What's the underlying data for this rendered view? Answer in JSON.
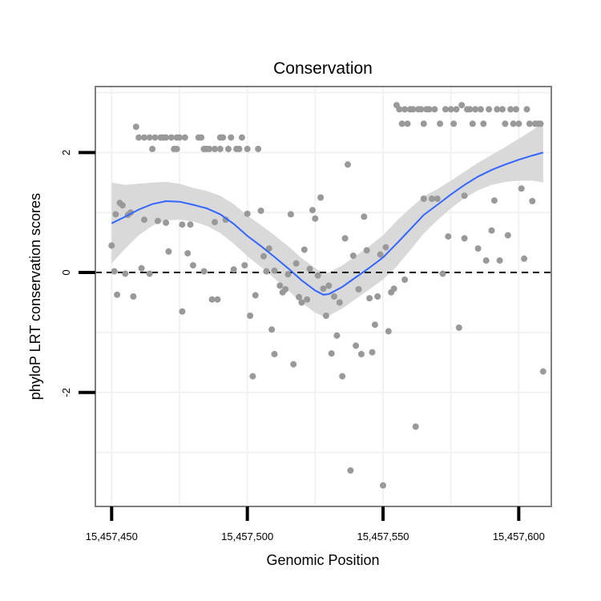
{
  "chart_data": {
    "type": "scatter",
    "title": "Conservation",
    "xlabel": "Genomic Position",
    "ylabel": "phyloP LRT conservation scores",
    "xlim": [
      15457444,
      15457612
    ],
    "ylim": [
      -3.9,
      3.1
    ],
    "x_ticks": [
      {
        "value": 15457450,
        "label": "15,457,450"
      },
      {
        "value": 15457500,
        "label": "15,457,500"
      },
      {
        "value": 15457550,
        "label": "15,457,550"
      },
      {
        "value": 15457600,
        "label": "15,457,600"
      }
    ],
    "y_ticks": [
      {
        "value": -2,
        "label": "-2"
      },
      {
        "value": 0,
        "label": "0"
      },
      {
        "value": 2,
        "label": "2"
      }
    ],
    "grid": true,
    "reference_line": {
      "y": 0,
      "style": "dashed"
    },
    "colors": {
      "points": "#999999",
      "smooth": "#3366ff",
      "ribbon": "#d9d9d9",
      "panel_border": "#7f7f7f",
      "grid": "#f2f2f2"
    },
    "points": [
      [
        15457450,
        0.45
      ],
      [
        15457451,
        0.02
      ],
      [
        15457451.5,
        0.97
      ],
      [
        15457452,
        -0.37
      ],
      [
        15457453,
        1.16
      ],
      [
        15457454,
        1.12
      ],
      [
        15457455,
        -0.02
      ],
      [
        15457456,
        0.96
      ],
      [
        15457457,
        1.0
      ],
      [
        15457458,
        -0.4
      ],
      [
        15457459,
        2.43
      ],
      [
        15457460,
        2.25
      ],
      [
        15457461,
        0.07
      ],
      [
        15457462,
        0.88
      ],
      [
        15457462,
        2.25
      ],
      [
        15457464,
        2.25
      ],
      [
        15457464,
        -0.02
      ],
      [
        15457465,
        2.06
      ],
      [
        15457466,
        2.25
      ],
      [
        15457467,
        0.86
      ],
      [
        15457468,
        2.25
      ],
      [
        15457469,
        2.25
      ],
      [
        15457470,
        0.83
      ],
      [
        15457470,
        2.25
      ],
      [
        15457471,
        0.35
      ],
      [
        15457472,
        2.25
      ],
      [
        15457473,
        2.06
      ],
      [
        15457474,
        2.06
      ],
      [
        15457474,
        2.25
      ],
      [
        15457475,
        2.25
      ],
      [
        15457476,
        -0.65
      ],
      [
        15457476,
        0.8
      ],
      [
        15457477,
        2.25
      ],
      [
        15457478,
        0.32
      ],
      [
        15457479,
        0.8
      ],
      [
        15457480,
        0.12
      ],
      [
        15457482,
        2.25
      ],
      [
        15457483,
        2.25
      ],
      [
        15457484,
        2.06
      ],
      [
        15457484,
        0.02
      ],
      [
        15457485,
        2.06
      ],
      [
        15457486,
        2.06
      ],
      [
        15457487,
        -0.45
      ],
      [
        15457488,
        0.84
      ],
      [
        15457488,
        2.06
      ],
      [
        15457489,
        -0.45
      ],
      [
        15457490,
        2.25
      ],
      [
        15457490,
        2.06
      ],
      [
        15457491,
        2.25
      ],
      [
        15457492,
        0.88
      ],
      [
        15457493,
        2.06
      ],
      [
        15457494,
        2.25
      ],
      [
        15457495,
        0.05
      ],
      [
        15457496,
        2.06
      ],
      [
        15457497,
        2.06
      ],
      [
        15457498,
        2.25
      ],
      [
        15457499,
        0.12
      ],
      [
        15457500,
        0.98
      ],
      [
        15457500,
        2.06
      ],
      [
        15457501,
        -0.72
      ],
      [
        15457502,
        -1.73
      ],
      [
        15457503,
        -0.38
      ],
      [
        15457504,
        2.06
      ],
      [
        15457505,
        1.03
      ],
      [
        15457506,
        0.27
      ],
      [
        15457507,
        0.02
      ],
      [
        15457508,
        0.4
      ],
      [
        15457509,
        -0.95
      ],
      [
        15457510,
        -1.36
      ],
      [
        15457510,
        0.03
      ],
      [
        15457512,
        -0.22
      ],
      [
        15457513,
        -0.33
      ],
      [
        15457514,
        -0.28
      ],
      [
        15457515,
        -0.03
      ],
      [
        15457516,
        0.97
      ],
      [
        15457517,
        -1.53
      ],
      [
        15457518,
        0.15
      ],
      [
        15457519,
        -0.41
      ],
      [
        15457520,
        -0.5
      ],
      [
        15457521,
        0.38
      ],
      [
        15457522,
        -0.45
      ],
      [
        15457523,
        0.06
      ],
      [
        15457524,
        1.04
      ],
      [
        15457525,
        0.9
      ],
      [
        15457526,
        -0.05
      ],
      [
        15457527,
        1.25
      ],
      [
        15457528,
        -0.27
      ],
      [
        15457529,
        -0.72
      ],
      [
        15457530,
        -0.22
      ],
      [
        15457531,
        -1.35
      ],
      [
        15457532,
        -0.4
      ],
      [
        15457533,
        -1.05
      ],
      [
        15457534,
        -0.5
      ],
      [
        15457535,
        -1.73
      ],
      [
        15457536,
        0.57
      ],
      [
        15457537,
        1.8
      ],
      [
        15457538,
        -3.3
      ],
      [
        15457539,
        0.28
      ],
      [
        15457540,
        -1.22
      ],
      [
        15457541,
        -0.28
      ],
      [
        15457542,
        -1.36
      ],
      [
        15457543,
        0.93
      ],
      [
        15457544,
        0.37
      ],
      [
        15457545,
        -0.43
      ],
      [
        15457546,
        -1.33
      ],
      [
        15457547,
        -0.87
      ],
      [
        15457548,
        -0.4
      ],
      [
        15457549,
        0.3
      ],
      [
        15457550,
        -3.55
      ],
      [
        15457551,
        0.42
      ],
      [
        15457552,
        -0.98
      ],
      [
        15457553,
        -0.33
      ],
      [
        15457554,
        -0.27
      ],
      [
        15457555,
        2.79
      ],
      [
        15457556,
        2.72
      ],
      [
        15457557,
        2.48
      ],
      [
        15457558,
        -0.12
      ],
      [
        15457558,
        2.72
      ],
      [
        15457559,
        2.48
      ],
      [
        15457560,
        2.72
      ],
      [
        15457561,
        2.72
      ],
      [
        15457562,
        -2.57
      ],
      [
        15457563,
        2.72
      ],
      [
        15457564,
        2.72
      ],
      [
        15457565,
        1.23
      ],
      [
        15457565,
        2.48
      ],
      [
        15457566,
        2.72
      ],
      [
        15457567,
        2.72
      ],
      [
        15457568,
        1.23
      ],
      [
        15457569,
        2.72
      ],
      [
        15457570,
        1.23
      ],
      [
        15457571,
        2.48
      ],
      [
        15457572,
        -0.02
      ],
      [
        15457573,
        2.72
      ],
      [
        15457574,
        0.6
      ],
      [
        15457575,
        2.72
      ],
      [
        15457576,
        2.48
      ],
      [
        15457577,
        2.72
      ],
      [
        15457578,
        -0.92
      ],
      [
        15457579,
        2.79
      ],
      [
        15457580,
        1.28
      ],
      [
        15457580,
        0.57
      ],
      [
        15457581,
        2.72
      ],
      [
        15457582,
        2.72
      ],
      [
        15457583,
        2.48
      ],
      [
        15457584,
        2.72
      ],
      [
        15457585,
        0.4
      ],
      [
        15457586,
        2.72
      ],
      [
        15457587,
        2.48
      ],
      [
        15457588,
        0.2
      ],
      [
        15457589,
        2.72
      ],
      [
        15457590,
        0.7
      ],
      [
        15457591,
        1.2
      ],
      [
        15457592,
        2.72
      ],
      [
        15457593,
        0.2
      ],
      [
        15457594,
        2.72
      ],
      [
        15457595,
        2.48
      ],
      [
        15457596,
        0.62
      ],
      [
        15457597,
        2.72
      ],
      [
        15457598,
        2.48
      ],
      [
        15457599,
        2.72
      ],
      [
        15457600,
        2.48
      ],
      [
        15457601,
        1.4
      ],
      [
        15457602,
        0.23
      ],
      [
        15457603,
        2.72
      ],
      [
        15457604,
        2.48
      ],
      [
        15457605,
        1.19
      ],
      [
        15457606,
        2.48
      ],
      [
        15457607,
        2.48
      ],
      [
        15457608,
        2.48
      ],
      [
        15457609,
        -1.65
      ]
    ],
    "smooth_line": {
      "x": [
        15457450,
        15457455,
        15457460,
        15457465,
        15457470,
        15457475,
        15457480,
        15457485,
        15457490,
        15457495,
        15457500,
        15457505,
        15457510,
        15457515,
        15457520,
        15457525,
        15457528,
        15457530,
        15457535,
        15457540,
        15457545,
        15457550,
        15457555,
        15457560,
        15457565,
        15457570,
        15457575,
        15457580,
        15457585,
        15457590,
        15457595,
        15457600,
        15457605,
        15457609
      ],
      "y": [
        0.82,
        0.93,
        1.05,
        1.14,
        1.19,
        1.18,
        1.13,
        1.07,
        0.97,
        0.81,
        0.61,
        0.44,
        0.26,
        0.07,
        -0.13,
        -0.3,
        -0.37,
        -0.36,
        -0.24,
        -0.08,
        0.08,
        0.25,
        0.48,
        0.72,
        0.96,
        1.13,
        1.3,
        1.46,
        1.6,
        1.71,
        1.8,
        1.88,
        1.95,
        2.0
      ]
    },
    "confidence_band": {
      "x": [
        15457450,
        15457455,
        15457460,
        15457465,
        15457470,
        15457475,
        15457480,
        15457485,
        15457490,
        15457495,
        15457500,
        15457505,
        15457510,
        15457515,
        15457520,
        15457525,
        15457528,
        15457530,
        15457535,
        15457540,
        15457545,
        15457550,
        15457555,
        15457560,
        15457565,
        15457570,
        15457575,
        15457580,
        15457585,
        15457590,
        15457595,
        15457600,
        15457605,
        15457609
      ],
      "lower": [
        0.15,
        0.4,
        0.62,
        0.78,
        0.87,
        0.88,
        0.85,
        0.78,
        0.66,
        0.48,
        0.27,
        0.09,
        -0.1,
        -0.3,
        -0.5,
        -0.67,
        -0.73,
        -0.72,
        -0.6,
        -0.44,
        -0.28,
        -0.12,
        0.1,
        0.37,
        0.65,
        0.87,
        1.07,
        1.24,
        1.37,
        1.46,
        1.51,
        1.53,
        1.53,
        1.5
      ],
      "upper": [
        1.5,
        1.46,
        1.48,
        1.5,
        1.51,
        1.48,
        1.41,
        1.36,
        1.28,
        1.14,
        0.95,
        0.79,
        0.62,
        0.44,
        0.24,
        0.07,
        -0.01,
        0.0,
        0.12,
        0.28,
        0.44,
        0.62,
        0.86,
        1.07,
        1.27,
        1.39,
        1.53,
        1.68,
        1.83,
        1.96,
        2.09,
        2.23,
        2.37,
        2.5
      ]
    }
  }
}
